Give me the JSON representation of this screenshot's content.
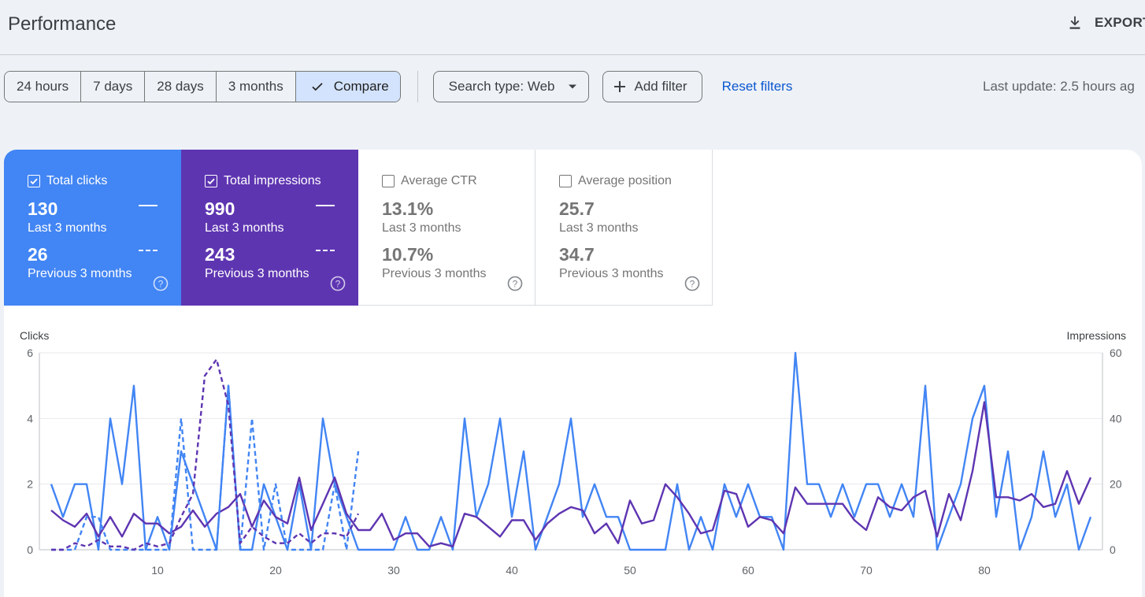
{
  "header": {
    "title": "Performance",
    "export_label": "EXPORT"
  },
  "toolbar": {
    "ranges": [
      "24 hours",
      "7 days",
      "28 days",
      "3 months"
    ],
    "compare_label": "Compare",
    "search_type": "Search type: Web",
    "add_filter": "Add filter",
    "reset_filters": "Reset filters",
    "last_update": "Last update: 2.5 hours ag"
  },
  "metrics": {
    "clicks": {
      "label": "Total clicks",
      "checked": true,
      "current": "130",
      "current_label": "Last 3 months",
      "previous": "26",
      "previous_label": "Previous 3 months",
      "color": "#4285f4"
    },
    "impressions": {
      "label": "Total impressions",
      "checked": true,
      "current": "990",
      "current_label": "Last 3 months",
      "previous": "243",
      "previous_label": "Previous 3 months",
      "color": "#5e35b1"
    },
    "ctr": {
      "label": "Average CTR",
      "checked": false,
      "current": "13.1%",
      "current_label": "Last 3 months",
      "previous": "10.7%",
      "previous_label": "Previous 3 months"
    },
    "position": {
      "label": "Average position",
      "checked": false,
      "current": "25.7",
      "current_label": "Last 3 months",
      "previous": "34.7",
      "previous_label": "Previous 3 months"
    }
  },
  "chart_data": {
    "type": "line",
    "ylabel_left": "Clicks",
    "ylabel_right": "Impressions",
    "ylim_left": [
      0,
      6
    ],
    "ylim_right": [
      0,
      60
    ],
    "yticks_left": [
      0,
      2,
      4,
      6
    ],
    "yticks_right": [
      0,
      20,
      40,
      60
    ],
    "xlim": [
      1,
      89
    ],
    "xticks": [
      10,
      20,
      30,
      40,
      50,
      60,
      70,
      80
    ],
    "grid": true,
    "series": [
      {
        "name": "Clicks",
        "axis": "left",
        "style": "solid",
        "color": "#4285f4",
        "x": [
          1,
          2,
          3,
          4,
          5,
          6,
          7,
          8,
          9,
          10,
          11,
          12,
          13,
          14,
          15,
          16,
          17,
          18,
          19,
          20,
          21,
          22,
          23,
          24,
          25,
          26,
          27,
          28,
          29,
          30,
          31,
          32,
          33,
          34,
          35,
          36,
          37,
          38,
          39,
          40,
          41,
          42,
          43,
          44,
          45,
          46,
          47,
          48,
          49,
          50,
          51,
          52,
          53,
          54,
          55,
          56,
          57,
          58,
          59,
          60,
          61,
          62,
          63,
          64,
          65,
          66,
          67,
          68,
          69,
          70,
          71,
          72,
          73,
          74,
          75,
          76,
          77,
          78,
          79,
          80,
          81,
          82,
          83,
          84,
          85,
          86,
          87,
          88,
          89
        ],
        "values": [
          2,
          1,
          2,
          2,
          0,
          4,
          2,
          5,
          0,
          1,
          0,
          3,
          2,
          1,
          0,
          5,
          0,
          0,
          2,
          1,
          0,
          2,
          0,
          4,
          2,
          1,
          0,
          0,
          0,
          0,
          1,
          0,
          0,
          1,
          0,
          4,
          1,
          2,
          4,
          1,
          3,
          0,
          1,
          2,
          4,
          1,
          2,
          1,
          1,
          0,
          0,
          0,
          0,
          2,
          0,
          1,
          0,
          2,
          1,
          2,
          1,
          1,
          0,
          6,
          2,
          2,
          1,
          2,
          1,
          2,
          2,
          1,
          2,
          1,
          5,
          0,
          1,
          2,
          4,
          5,
          1,
          3,
          0,
          1,
          3,
          1,
          2,
          0,
          1
        ]
      },
      {
        "name": "Impressions",
        "axis": "right",
        "style": "solid",
        "color": "#5e35b1",
        "x": [
          1,
          2,
          3,
          4,
          5,
          6,
          7,
          8,
          9,
          10,
          11,
          12,
          13,
          14,
          15,
          16,
          17,
          18,
          19,
          20,
          21,
          22,
          23,
          24,
          25,
          26,
          27,
          28,
          29,
          30,
          31,
          32,
          33,
          34,
          35,
          36,
          37,
          38,
          39,
          40,
          41,
          42,
          43,
          44,
          45,
          46,
          47,
          48,
          49,
          50,
          51,
          52,
          53,
          54,
          55,
          56,
          57,
          58,
          59,
          60,
          61,
          62,
          63,
          64,
          65,
          66,
          67,
          68,
          69,
          70,
          71,
          72,
          73,
          74,
          75,
          76,
          77,
          78,
          79,
          80,
          81,
          82,
          83,
          84,
          85,
          86,
          87,
          88,
          89
        ],
        "values": [
          12,
          9,
          7,
          11,
          4,
          10,
          4,
          11,
          8,
          8,
          5,
          7,
          12,
          7,
          11,
          13,
          17,
          7,
          15,
          10,
          8,
          22,
          6,
          14,
          22,
          11,
          6,
          6,
          11,
          3,
          5,
          5,
          1,
          2,
          1,
          11,
          10,
          7,
          4,
          9,
          9,
          3,
          8,
          11,
          13,
          12,
          5,
          8,
          2,
          15,
          8,
          9,
          20,
          16,
          11,
          5,
          6,
          18,
          17,
          7,
          10,
          9,
          5,
          19,
          14,
          14,
          14,
          14,
          9,
          6,
          16,
          13,
          12,
          16,
          18,
          4,
          17,
          9,
          24,
          45,
          16,
          16,
          15,
          17,
          13,
          14,
          24,
          14,
          22
        ]
      },
      {
        "name": "Clicks (previous)",
        "axis": "left",
        "style": "dashed",
        "color": "#4285f4",
        "x": [
          1,
          2,
          3,
          4,
          5,
          6,
          7,
          8,
          9,
          10,
          11,
          12,
          13,
          14,
          15,
          16,
          17,
          18,
          19,
          20,
          21,
          22,
          23,
          24,
          25,
          26,
          27
        ],
        "values": [
          0,
          0,
          0,
          1,
          1,
          0,
          0,
          0,
          0,
          0,
          0,
          4,
          0,
          0,
          0,
          5,
          0,
          4,
          0,
          2,
          0,
          0,
          0,
          0,
          2,
          0,
          3
        ]
      },
      {
        "name": "Impressions (previous)",
        "axis": "right",
        "style": "dashed",
        "color": "#5e35b1",
        "x": [
          1,
          2,
          3,
          4,
          5,
          6,
          7,
          8,
          9,
          10,
          11,
          12,
          13,
          14,
          15,
          16,
          17,
          18,
          19,
          20,
          21,
          22,
          23,
          24,
          25,
          26,
          27
        ],
        "values": [
          0,
          0,
          2,
          1,
          3,
          1,
          1,
          0,
          2,
          1,
          2,
          10,
          17,
          53,
          58,
          44,
          2,
          7,
          4,
          2,
          2,
          5,
          2,
          5,
          5,
          4,
          11
        ]
      }
    ]
  }
}
